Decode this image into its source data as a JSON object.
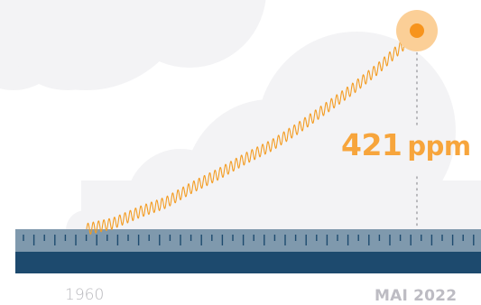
{
  "chart_data": {
    "type": "line",
    "series": [
      {
        "x": [
          1960,
          1965,
          1970,
          1975,
          1980,
          1985,
          1990,
          1995,
          2000,
          2005,
          2010,
          2015,
          2020,
          2022.4
        ],
        "values": [
          317,
          320,
          326,
          331,
          339,
          346,
          354,
          361,
          370,
          380,
          390,
          401,
          414,
          421
        ]
      }
    ],
    "start_label": "1960",
    "end_label": "MAI 2022",
    "callout": {
      "value": "421",
      "unit": "ppm"
    },
    "seasonal_amplitude": 3,
    "xlim": [
      1960,
      2022.4
    ],
    "ylim": [
      317,
      421
    ]
  },
  "colors": {
    "line": "#f39c22",
    "value_text": "#f7a53c",
    "endpoint_outer": "#fbcf97",
    "endpoint_inner": "#f7941d",
    "ruler_top": "#7f99ad",
    "ruler_bottom": "#1d4a6e",
    "clouds": "#f3f3f5"
  }
}
